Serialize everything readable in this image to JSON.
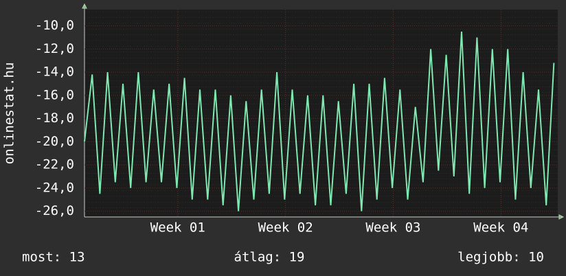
{
  "chart_data": {
    "type": "line",
    "y_label": "onlinestat.hu",
    "ylim": [
      -26.5,
      -8.6
    ],
    "yticks": [
      {
        "value": -10,
        "label": "-10,0"
      },
      {
        "value": -12,
        "label": "-12,0"
      },
      {
        "value": -14,
        "label": "-14,0"
      },
      {
        "value": -16,
        "label": "-16,0"
      },
      {
        "value": -18,
        "label": "-18,0"
      },
      {
        "value": -20,
        "label": "-20,0"
      },
      {
        "value": -22,
        "label": "-22,0"
      },
      {
        "value": -24,
        "label": "-24,0"
      },
      {
        "value": -26,
        "label": "-26,0"
      }
    ],
    "xlim": [
      0,
      30.75
    ],
    "xticks": [
      {
        "value": 6.06,
        "label": "Week 01"
      },
      {
        "value": 13.06,
        "label": "Week 02"
      },
      {
        "value": 20.06,
        "label": "Week 03"
      },
      {
        "value": 27.06,
        "label": "Week 04"
      }
    ],
    "grid": true,
    "series": [
      {
        "color": "#7fe8b0",
        "x": [
          0,
          0.5,
          1,
          1.5,
          2,
          2.5,
          3,
          3.5,
          4,
          4.5,
          5,
          5.5,
          6,
          6.5,
          7,
          7.5,
          8,
          8.5,
          9,
          9.5,
          10,
          10.5,
          11,
          11.5,
          12,
          12.5,
          13,
          13.5,
          14,
          14.5,
          15,
          15.5,
          16,
          16.5,
          17,
          17.5,
          18,
          18.5,
          19,
          19.5,
          20,
          20.5,
          21,
          21.5,
          22,
          22.5,
          23,
          23.5,
          24,
          24.5,
          25,
          25.5,
          26,
          26.5,
          27,
          27.5,
          28,
          28.5,
          29,
          29.5,
          30,
          30.5
        ],
        "values": [
          -20,
          -14.2,
          -24.5,
          -14,
          -23.5,
          -15,
          -24,
          -14,
          -23.5,
          -15.5,
          -23.5,
          -15,
          -24,
          -14.5,
          -25,
          -15.5,
          -25,
          -15.5,
          -25.5,
          -16,
          -26,
          -16.5,
          -25,
          -15.5,
          -24.5,
          -14,
          -25,
          -15.5,
          -24.5,
          -16,
          -25.5,
          -16,
          -25.5,
          -16.5,
          -24.5,
          -15,
          -26,
          -15,
          -25,
          -14.5,
          -24,
          -15.5,
          -25,
          -17,
          -23.5,
          -12,
          -22.5,
          -12.5,
          -23,
          -10.5,
          -24.5,
          -11,
          -24,
          -12,
          -23.5,
          -12,
          -25,
          -14,
          -24,
          -15.5,
          -25.5,
          -13.2
        ]
      }
    ],
    "footer": [
      "most: 13",
      "átlag: 19",
      "legjobb: 10"
    ]
  }
}
